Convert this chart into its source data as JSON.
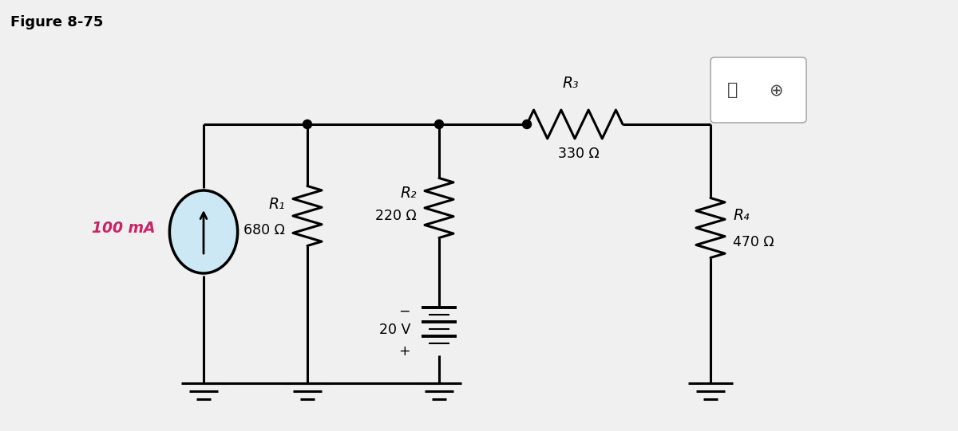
{
  "title": "Figure 8-75",
  "bg_color": "#f0f0f0",
  "cs_fill": "#cce8f4",
  "current_source_label": "100 mA",
  "current_source_color": "#cc2266",
  "R1_label": "R₁",
  "R1_value": "680 Ω",
  "R2_label": "R₂",
  "R2_value": "220 Ω",
  "R3_label": "R₃",
  "R3_value": "330 Ω",
  "R4_label": "R₄",
  "R4_value": "470 Ω",
  "V_label": "20 V",
  "V_plus": "+",
  "V_minus": "−",
  "lw": 2.2
}
